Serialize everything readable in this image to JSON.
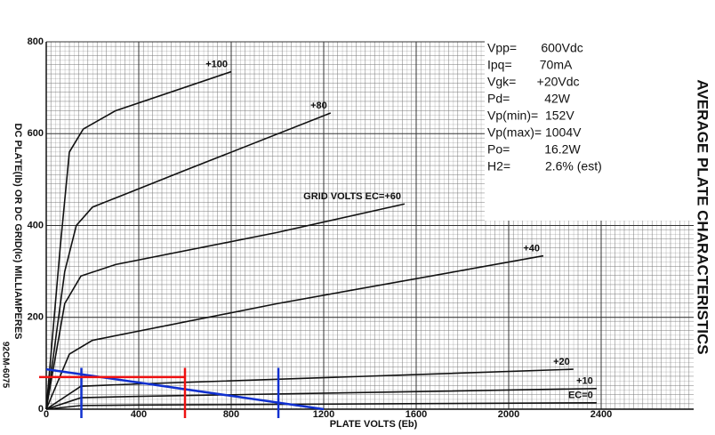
{
  "chart_data": {
    "type": "line",
    "title": "AVERAGE PLATE CHARACTERISTICS",
    "x_label": "PLATE VOLTS (Eb)",
    "y_label": "DC PLATE(Ib) OR DC GRID(Ic) MILLIAMPERES",
    "code": "92CM-6075",
    "annotations": [
      "Vpp=       600Vdc",
      "Ipq=        70mA",
      "Vgk=      +20Vdc",
      "Pd=          42W",
      "Vp(min)=  152V",
      "Vp(max)= 1004V",
      "Po=          16.2W",
      "H2=          2.6% (est)"
    ],
    "xlim": [
      0,
      2800
    ],
    "ylim": [
      0,
      800
    ],
    "xticks": [
      0,
      400,
      800,
      1200,
      1600,
      2000,
      2400
    ],
    "yticks": [
      0,
      200,
      400,
      600,
      800
    ],
    "grid": true,
    "series": [
      {
        "name": "+100",
        "color": "#111111",
        "x": [
          0,
          60,
          100,
          160,
          300,
          800
        ],
        "values": [
          0,
          350,
          560,
          610,
          650,
          735
        ]
      },
      {
        "name": "+80",
        "color": "#111111",
        "x": [
          0,
          80,
          130,
          200,
          600,
          1230
        ],
        "values": [
          0,
          300,
          400,
          440,
          520,
          645
        ]
      },
      {
        "name": "GRID VOLTS EC=+60",
        "color": "#111111",
        "x": [
          0,
          80,
          150,
          300,
          1000,
          1550
        ],
        "values": [
          0,
          230,
          290,
          315,
          385,
          447
        ]
      },
      {
        "name": "+40",
        "color": "#111111",
        "x": [
          0,
          100,
          200,
          1000,
          2150
        ],
        "values": [
          0,
          120,
          150,
          230,
          334
        ]
      },
      {
        "name": "+20",
        "color": "#111111",
        "x": [
          0,
          150,
          400,
          2280
        ],
        "values": [
          0,
          50,
          55,
          87
        ]
      },
      {
        "name": "+10",
        "color": "#111111",
        "x": [
          0,
          150,
          400,
          2380
        ],
        "values": [
          0,
          25,
          28,
          45
        ]
      },
      {
        "name": "EC=0",
        "color": "#111111",
        "x": [
          0,
          150,
          400,
          2380
        ],
        "values": [
          0,
          8,
          9,
          14
        ]
      },
      {
        "color": "#1030d0",
        "x": [
          0,
          1200
        ],
        "values": [
          87,
          0
        ]
      }
    ],
    "reference_lines": [
      {
        "x": 152,
        "color": "#1030d0"
      },
      {
        "x": 1004,
        "color": "#1030d0"
      },
      {
        "x": 600,
        "color": "#ee1111"
      },
      {
        "y": 70,
        "color": "#ee1111"
      }
    ]
  }
}
